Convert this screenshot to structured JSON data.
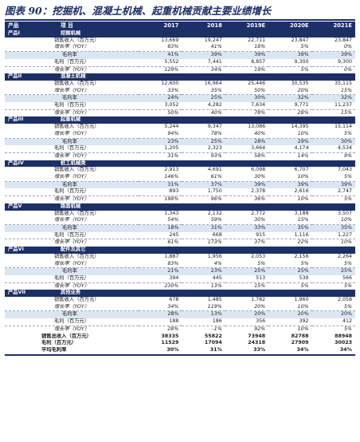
{
  "title": "图表 90：挖掘机、混凝土机械、起重机械贡献主要业绩增长",
  "header": {
    "product_col": "产品",
    "item_col": "项  目",
    "years": [
      "2017",
      "2018",
      "2019E",
      "2020E",
      "2021E"
    ]
  },
  "sections": [
    {
      "product": "产品I",
      "name": "挖掘机械",
      "sales_label": "销售收入（百万元）",
      "sales": [
        "13,669",
        "19,247",
        "22,711",
        "23,847",
        "23,847"
      ],
      "sales_yoy_label": "增长率（YOY）",
      "sales_yoy": [
        "83%",
        "41%",
        "18%",
        "5%",
        "0%"
      ],
      "margin_label": "毛利率",
      "margin": [
        "41%",
        "39%",
        "39%",
        "39%",
        "39%"
      ],
      "gp_label": "毛利（百万元）",
      "gp": [
        "5,552",
        "7,441",
        "8,857",
        "9,300",
        "9,300"
      ],
      "gp_yoy_label": "增长率（YOY）",
      "gp_yoy": [
        "129%",
        "34%",
        "19%",
        "5%",
        "0%"
      ]
    },
    {
      "product": "产品II",
      "name": "混凝土机械",
      "sales_label": "销售收入（百万元）",
      "sales": [
        "12,600",
        "16,964",
        "25,446",
        "30,535",
        "35,115"
      ],
      "sales_yoy_label": "增长率（YOY）",
      "sales_yoy": [
        "33%",
        "35%",
        "50%",
        "20%",
        "15%"
      ],
      "margin_label": "毛利率",
      "margin": [
        "24%",
        "25%",
        "30%",
        "32%",
        "32%"
      ],
      "gp_label": "毛利（百万元）",
      "gp": [
        "3,052",
        "4,282",
        "7,634",
        "9,771",
        "11,237"
      ],
      "gp_yoy_label": "增长率（YOY）",
      "gp_yoy": [
        "50%",
        "40%",
        "78%",
        "28%",
        "15%"
      ]
    },
    {
      "product": "产品III",
      "name": "起重机械",
      "sales_label": "销售收入（百万元）",
      "sales": [
        "5,244",
        "9,347",
        "13,086",
        "14,395",
        "15,114"
      ],
      "sales_yoy_label": "增长率（YOY）",
      "sales_yoy": [
        "94%",
        "78%",
        "40%",
        "10%",
        "5%"
      ],
      "margin_label": "毛利率",
      "margin": [
        "23%",
        "25%",
        "28%",
        "29%",
        "30%"
      ],
      "gp_label": "毛利（百万元）",
      "gp": [
        "1,205",
        "2,323",
        "3,664",
        "4,174",
        "4,534"
      ],
      "gp_yoy_label": "增长率（YOY）",
      "gp_yoy": [
        "31%",
        "93%",
        "58%",
        "14%",
        "9%"
      ]
    },
    {
      "product": "产品IV",
      "name": "桩工机械类",
      "sales_label": "销售收入（百万元）",
      "sales": [
        "2,913",
        "4,691",
        "6,098",
        "6,707",
        "7,043"
      ],
      "sales_yoy_label": "增长率（YOY）",
      "sales_yoy": [
        "146%",
        "61%",
        "30%",
        "10%",
        "5%"
      ],
      "margin_label": "毛利率",
      "margin": [
        "31%",
        "37%",
        "39%",
        "39%",
        "39%"
      ],
      "gp_label": "毛利（百万元）",
      "gp": [
        "893",
        "1,750",
        "2,378",
        "2,616",
        "2,747"
      ],
      "gp_yoy_label": "增长率（YOY）",
      "gp_yoy": [
        "198%",
        "96%",
        "36%",
        "10%",
        "5%"
      ]
    },
    {
      "product": "产品V",
      "name": "路面机械",
      "sales_label": "销售收入（百万元）",
      "sales": [
        "1,343",
        "2,132",
        "2,772",
        "3,188",
        "3,507"
      ],
      "sales_yoy_label": "增长率（YOY）",
      "sales_yoy": [
        "54%",
        "59%",
        "30%",
        "15%",
        "10%"
      ],
      "margin_label": "毛利率",
      "margin": [
        "18%",
        "31%",
        "33%",
        "35%",
        "35%"
      ],
      "gp_label": "毛利（百万元）",
      "gp": [
        "245",
        "668",
        "915",
        "1,116",
        "1,227"
      ],
      "gp_yoy_label": "增长率（YOY）",
      "gp_yoy": [
        "61%",
        "173%",
        "37%",
        "22%",
        "10%"
      ]
    },
    {
      "product": "产品VI",
      "name": "配件及其它",
      "sales_label": "销售收入（百万元）",
      "sales": [
        "1,887",
        "1,956",
        "2,053",
        "2,156",
        "2,264"
      ],
      "sales_yoy_label": "增长率（YOY）",
      "sales_yoy": [
        "83%",
        "4%",
        "5%",
        "5%",
        "5%"
      ],
      "margin_label": "毛利率",
      "margin": [
        "21%",
        "23%",
        "25%",
        "25%",
        "25%"
      ],
      "gp_label": "毛利（百万元）",
      "gp": [
        "394",
        "445",
        "513",
        "539",
        "566"
      ],
      "gp_yoy_label": "增长率（YOY）",
      "gp_yoy": [
        "230%",
        "13%",
        "15%",
        "5%",
        "5%"
      ]
    },
    {
      "product": "产品VII",
      "name": "其他业务",
      "sales_label": "销售收入（百万元）",
      "sales": [
        "678",
        "1,485",
        "1,782",
        "1,960",
        "2,058"
      ],
      "sales_yoy_label": "增长率（YOY）",
      "sales_yoy": [
        "34%",
        "119%",
        "20%",
        "10%",
        "5%"
      ],
      "margin_label": "毛利率",
      "margin": [
        "28%",
        "13%",
        "20%",
        "20%",
        "20%"
      ],
      "gp_label": "毛利（百万元）",
      "gp": [
        "188",
        "186",
        "356",
        "392",
        "412"
      ],
      "gp_yoy_label": "增长率（YOY）",
      "gp_yoy": [
        "28%",
        "-1%",
        "92%",
        "10%",
        "5%"
      ]
    }
  ],
  "totals": {
    "sales_label": "销售总收入（百万元）",
    "sales": [
      "38335",
      "55822",
      "73948",
      "82788",
      "88948"
    ],
    "gp_label": "毛利（百万元）",
    "gp": [
      "11529",
      "17094",
      "24318",
      "27909",
      "30023"
    ],
    "margin_label": "平均毛利率",
    "margin": [
      "30%",
      "31%",
      "33%",
      "34%",
      "34%"
    ]
  }
}
